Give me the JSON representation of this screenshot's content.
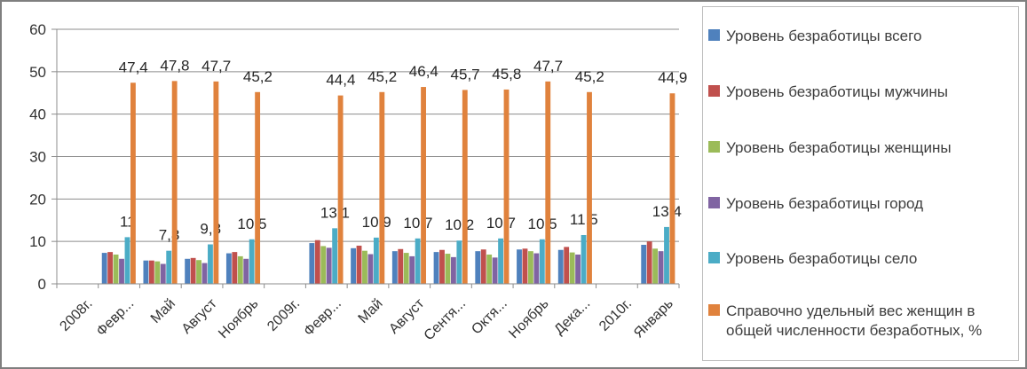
{
  "window": {
    "background": "#ffffff",
    "border_color": "#7f7f7f"
  },
  "colors": {
    "gridline": "#8c8c8c",
    "axis": "#8c8c8c",
    "tick_label": "#333333",
    "data_label": "#262626",
    "legend_text": "#3d3d3d",
    "legend_border": "#bdbdbd"
  },
  "chart_data": {
    "type": "bar",
    "title": "",
    "xlabel": "",
    "ylabel": "",
    "ylim": [
      0,
      60
    ],
    "yticks": [
      0,
      10,
      20,
      30,
      40,
      50,
      60
    ],
    "grid": true,
    "legend_position": "right",
    "decimal_separator": ",",
    "categories": [
      "2008г.",
      "Февр...",
      "Май",
      "Август",
      "Ноябрь",
      "2009г.",
      "Февр...",
      "Май",
      "Август",
      "Сентя...",
      "Октя...",
      "Ноябрь",
      "Дека...",
      "2010г.",
      "Январь"
    ],
    "series": [
      {
        "name": "Уровень безработицы всего",
        "color": "#4F81BD",
        "show_labels": false,
        "estimated": true,
        "values": [
          null,
          7.3,
          5.5,
          5.9,
          7.2,
          null,
          9.6,
          8.4,
          7.7,
          7.5,
          7.7,
          8.1,
          8.0,
          null,
          9.2
        ]
      },
      {
        "name": "Уровень безработицы мужчины",
        "color": "#C0504D",
        "show_labels": false,
        "estimated": true,
        "values": [
          null,
          7.5,
          5.5,
          6.1,
          7.5,
          null,
          10.3,
          9.0,
          8.2,
          8.0,
          8.1,
          8.3,
          8.7,
          null,
          10.0
        ]
      },
      {
        "name": "Уровень безработицы женщины",
        "color": "#9BBB59",
        "show_labels": false,
        "estimated": true,
        "values": [
          null,
          6.9,
          5.3,
          5.6,
          6.5,
          null,
          8.9,
          7.8,
          7.3,
          7.1,
          6.9,
          7.7,
          7.4,
          null,
          8.3
        ]
      },
      {
        "name": "Уровень безработицы город",
        "color": "#8064A2",
        "show_labels": false,
        "estimated": true,
        "values": [
          null,
          5.9,
          4.7,
          4.9,
          5.9,
          null,
          8.5,
          7.0,
          6.5,
          6.3,
          6.2,
          7.2,
          6.9,
          null,
          7.7
        ]
      },
      {
        "name": "Уровень безработицы село",
        "color": "#4BACC6",
        "show_labels": true,
        "estimated": false,
        "values": [
          null,
          11,
          7.8,
          9.3,
          10.5,
          null,
          13.1,
          10.9,
          10.7,
          10.2,
          10.7,
          10.5,
          11.5,
          null,
          13.4
        ]
      },
      {
        "name": "Справочно удельный вес женщин в общей численности безработных, %",
        "color": "#E0823D",
        "show_labels": true,
        "estimated": false,
        "values": [
          null,
          47.4,
          47.8,
          47.7,
          45.2,
          null,
          44.4,
          45.2,
          46.4,
          45.7,
          45.8,
          47.7,
          45.2,
          null,
          44.9
        ]
      }
    ]
  },
  "legend": {
    "items": [
      {
        "label": "Уровень безработицы всего",
        "color": "#4F81BD"
      },
      {
        "label": "Уровень безработицы мужчины",
        "color": "#C0504D"
      },
      {
        "label": "Уровень безработицы женщины",
        "color": "#9BBB59"
      },
      {
        "label": "Уровень безработицы город",
        "color": "#8064A2"
      },
      {
        "label": "Уровень безработицы село",
        "color": "#4BACC6"
      },
      {
        "label": "Справочно удельный вес женщин в общей численности безработных, %",
        "color": "#E0823D"
      }
    ]
  }
}
